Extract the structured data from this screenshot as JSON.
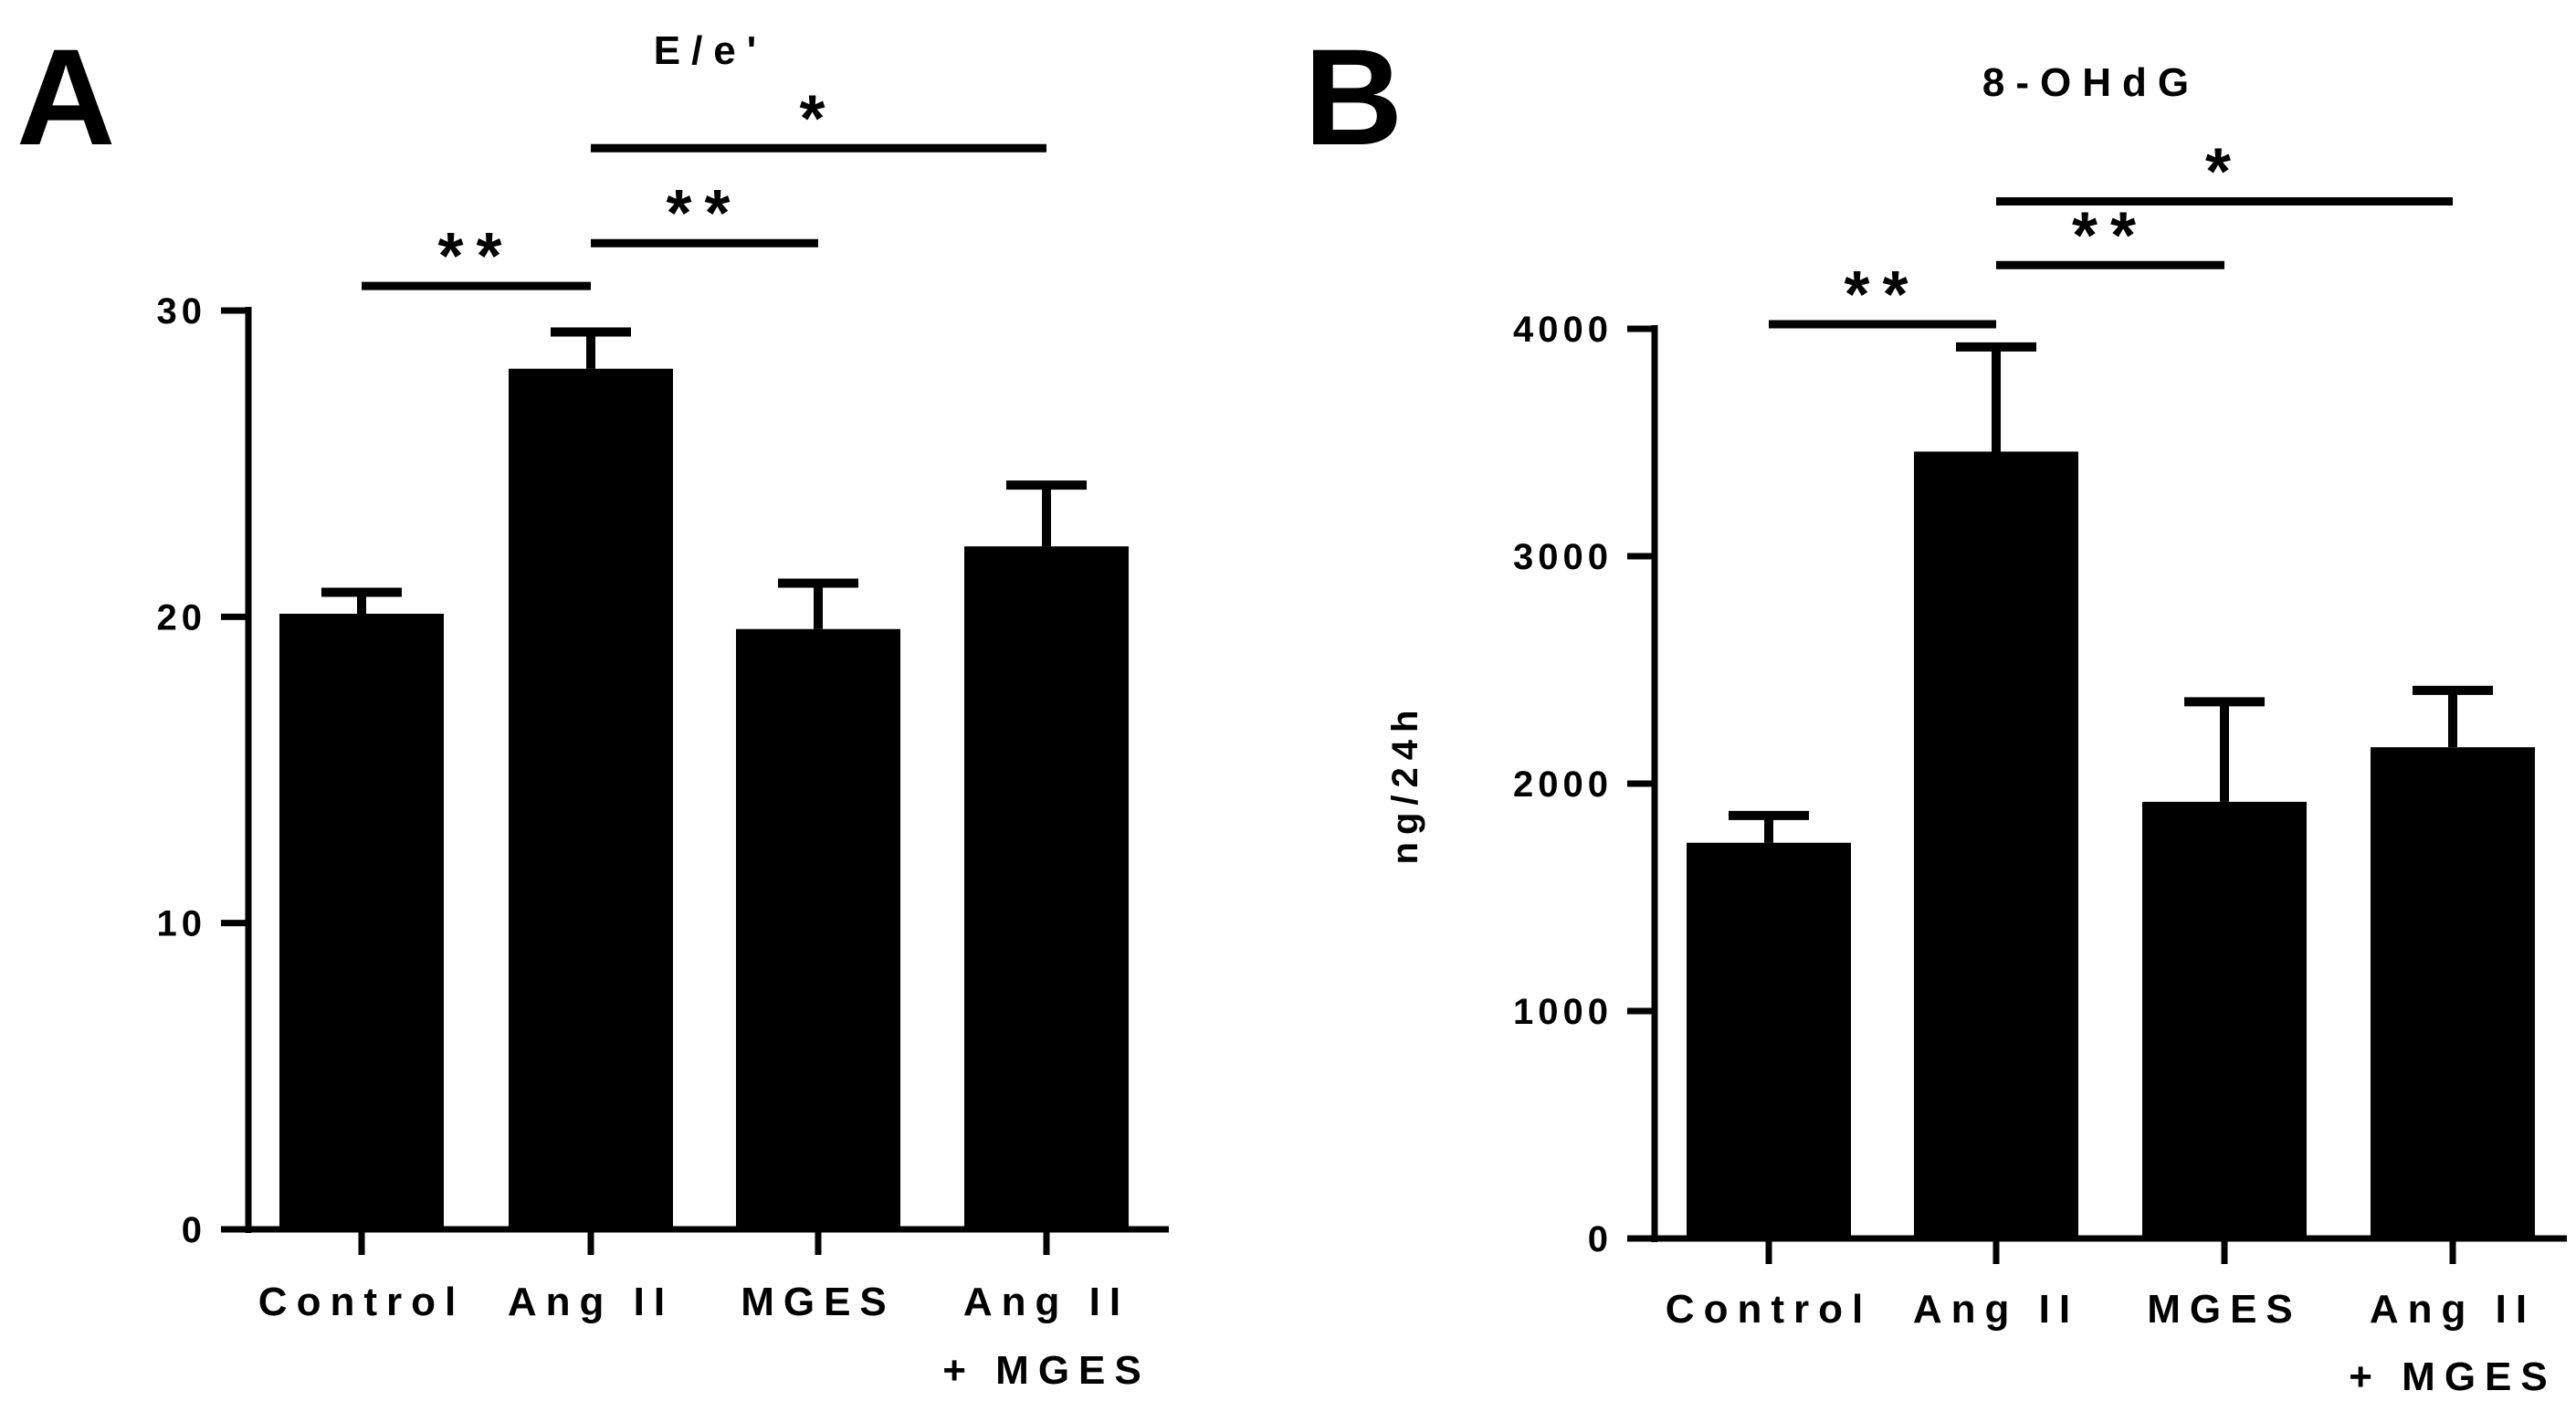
{
  "chart_data": [
    {
      "panel": "A",
      "type": "bar",
      "title": "E/e'",
      "ylabel": "",
      "xlabel": "",
      "ylim": [
        0,
        30
      ],
      "yticks": [
        0,
        10,
        20,
        30
      ],
      "categories": [
        [
          "Control"
        ],
        [
          "Ang II"
        ],
        [
          "MGES"
        ],
        [
          "Ang II",
          "+ MGES"
        ]
      ],
      "values": [
        20.1,
        28.1,
        19.6,
        22.3
      ],
      "errors": [
        0.7,
        1.2,
        1.5,
        2.0
      ],
      "significance": [
        {
          "from": 0,
          "to": 1,
          "label": "**",
          "value": 30.8
        },
        {
          "from": 1,
          "to": 2,
          "label": "**",
          "value": 32.2
        },
        {
          "from": 1,
          "to": 3,
          "label": "*",
          "value": 35.3
        }
      ]
    },
    {
      "panel": "B",
      "type": "bar",
      "title": "8-OHdG",
      "ylabel": "ng/24h",
      "xlabel": "",
      "ylim": [
        0,
        4000
      ],
      "yticks": [
        0,
        1000,
        2000,
        3000,
        4000
      ],
      "categories": [
        [
          "Control"
        ],
        [
          "Ang II"
        ],
        [
          "MGES"
        ],
        [
          "Ang II",
          "+ MGES"
        ]
      ],
      "values": [
        1740,
        3460,
        1920,
        2160
      ],
      "errors": [
        120,
        460,
        440,
        250
      ],
      "significance": [
        {
          "from": 0,
          "to": 1,
          "label": "**",
          "value": 4020
        },
        {
          "from": 1,
          "to": 2,
          "label": "**",
          "value": 4280
        },
        {
          "from": 1,
          "to": 3,
          "label": "*",
          "value": 4560
        }
      ]
    }
  ]
}
